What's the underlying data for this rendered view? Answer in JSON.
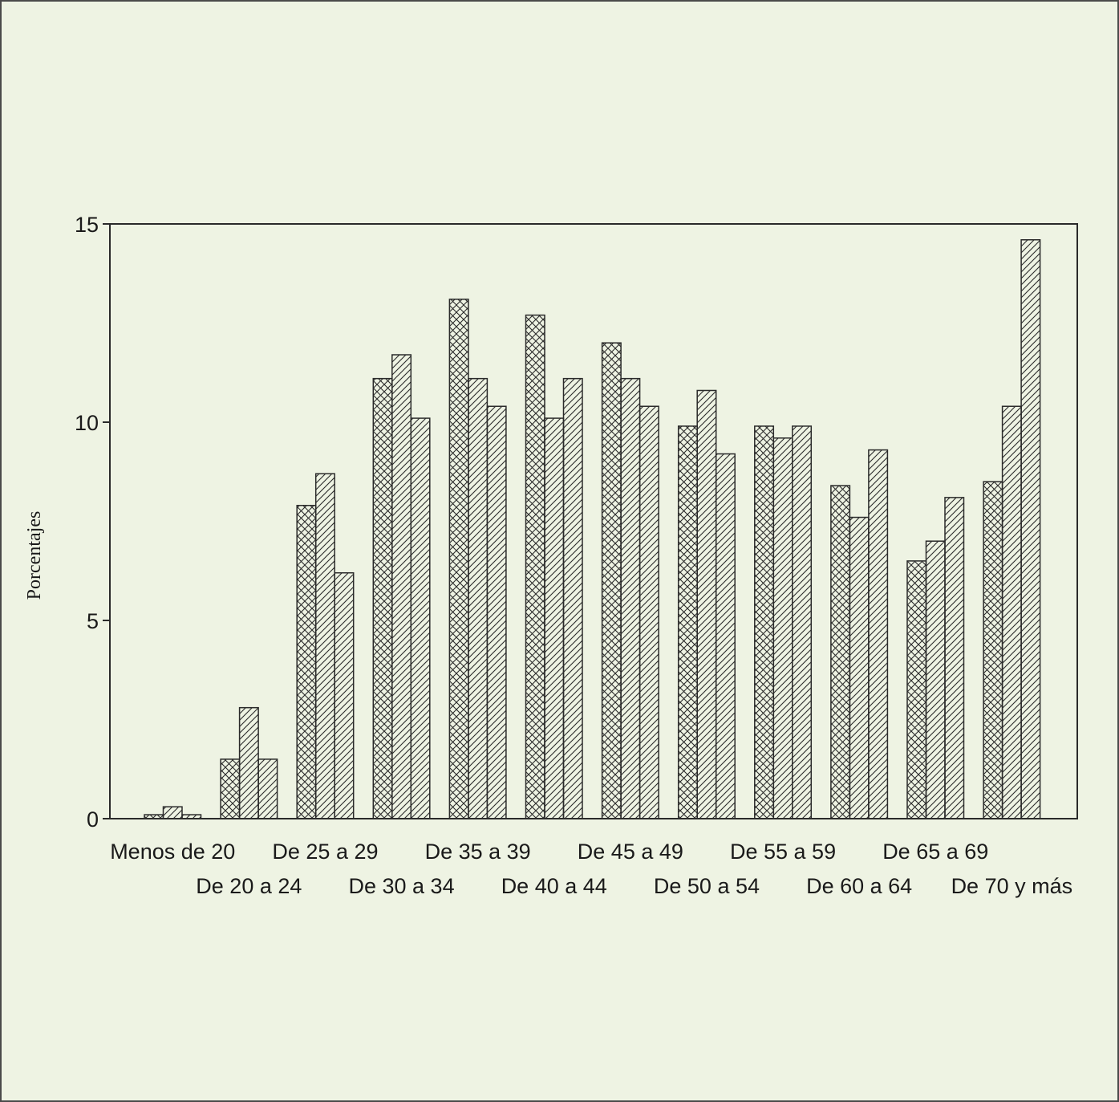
{
  "chart_data": {
    "type": "bar",
    "title": "",
    "xlabel": "",
    "ylabel": "Porcentajes",
    "ylim": [
      0,
      15
    ],
    "yticks": [
      0,
      5,
      10,
      15
    ],
    "grid": false,
    "legend": "none",
    "categories": [
      "Menos de 20",
      "De 20 a 24",
      "De 25 a 29",
      "De 30 a 34",
      "De 35 a 39",
      "De 40 a 44",
      "De 45 a 49",
      "De 50 a 54",
      "De 55 a 59",
      "De 60 a 64",
      "De 65 a 69",
      "De 70 y más"
    ],
    "series": [
      {
        "pattern": "crosshatch",
        "values": [
          0.1,
          1.5,
          7.9,
          11.1,
          13.1,
          12.7,
          12.0,
          9.9,
          9.9,
          8.4,
          6.5,
          8.5
        ]
      },
      {
        "pattern": "diagonal",
        "values": [
          0.3,
          2.8,
          8.7,
          11.7,
          11.1,
          10.1,
          11.1,
          10.8,
          9.6,
          7.6,
          7.0,
          10.4
        ]
      },
      {
        "pattern": "diagonal",
        "values": [
          0.1,
          1.5,
          6.2,
          10.1,
          10.4,
          11.1,
          10.4,
          9.2,
          9.9,
          9.3,
          8.1,
          14.6
        ]
      }
    ],
    "colors": {
      "ink": "#2a2a2a",
      "background": "#eef3e3"
    }
  }
}
